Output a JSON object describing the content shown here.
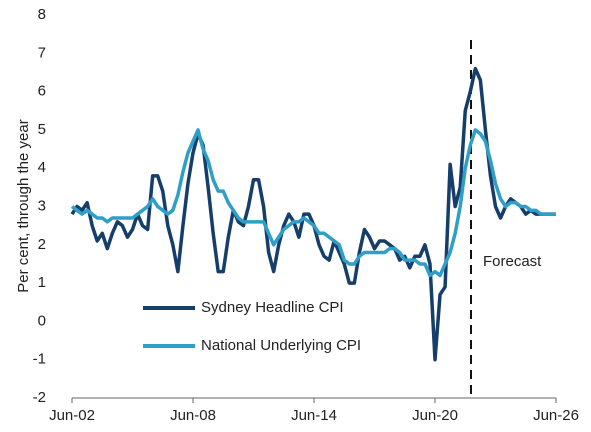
{
  "chart_data": {
    "type": "line",
    "y_label": "Per cent, through the year",
    "annotation": "Forecast",
    "categories": [
      "Jun-02",
      null,
      null,
      null,
      null,
      null,
      null,
      null,
      null,
      null,
      null,
      null,
      null,
      null,
      null,
      null,
      null,
      null,
      null,
      null,
      null,
      null,
      null,
      null,
      "Jun-08",
      null,
      null,
      null,
      null,
      null,
      null,
      null,
      null,
      null,
      null,
      null,
      null,
      null,
      null,
      null,
      null,
      null,
      null,
      null,
      null,
      null,
      null,
      null,
      "Jun-14",
      null,
      null,
      null,
      null,
      null,
      null,
      null,
      null,
      null,
      null,
      null,
      null,
      null,
      null,
      null,
      null,
      null,
      null,
      null,
      null,
      null,
      null,
      null,
      "Jun-20",
      null,
      null,
      null,
      null,
      null,
      null,
      null,
      null,
      null,
      null,
      null,
      null,
      null,
      null,
      null,
      null,
      null,
      null,
      null,
      null,
      null,
      null,
      null,
      "Jun-26"
    ],
    "series": [
      {
        "name": "Sydney Headline CPI",
        "color": "#153e6a",
        "values": [
          2.8,
          3.0,
          2.9,
          3.1,
          2.5,
          2.1,
          2.3,
          1.9,
          2.3,
          2.6,
          2.5,
          2.2,
          2.4,
          2.8,
          2.5,
          2.4,
          3.8,
          3.8,
          3.4,
          2.5,
          2.0,
          1.3,
          2.5,
          3.6,
          4.4,
          4.9,
          4.6,
          3.5,
          2.3,
          1.3,
          1.3,
          2.2,
          2.9,
          2.6,
          2.5,
          3.0,
          3.7,
          3.7,
          3.0,
          1.8,
          1.3,
          2.0,
          2.5,
          2.8,
          2.6,
          2.2,
          2.8,
          2.8,
          2.5,
          2.0,
          1.7,
          1.6,
          2.1,
          1.8,
          1.5,
          1.0,
          1.0,
          1.8,
          2.4,
          2.2,
          1.9,
          2.1,
          2.1,
          2.0,
          1.9,
          1.6,
          1.7,
          1.4,
          1.7,
          1.7,
          2.0,
          1.5,
          -1.0,
          0.7,
          0.9,
          4.1,
          3.0,
          3.5,
          5.5,
          6.0,
          6.6,
          6.3,
          5.0,
          3.8,
          3.0,
          2.7,
          3.0,
          3.2,
          3.1,
          3.0,
          2.8,
          2.9,
          2.8,
          2.8,
          2.8,
          2.8,
          2.8
        ]
      },
      {
        "name": "National Underlying CPI",
        "color": "#2f9fc8",
        "values": [
          3.0,
          2.9,
          2.8,
          2.9,
          2.8,
          2.7,
          2.7,
          2.6,
          2.7,
          2.7,
          2.7,
          2.7,
          2.7,
          2.8,
          2.9,
          3.0,
          3.2,
          3.0,
          2.9,
          2.8,
          2.9,
          3.3,
          3.9,
          4.4,
          4.7,
          5.0,
          4.5,
          4.2,
          3.7,
          3.4,
          3.4,
          3.1,
          2.9,
          2.7,
          2.6,
          2.6,
          2.6,
          2.6,
          2.6,
          2.3,
          2.0,
          2.2,
          2.4,
          2.5,
          2.6,
          2.6,
          2.7,
          2.6,
          2.5,
          2.3,
          2.3,
          2.2,
          2.1,
          2.0,
          1.6,
          1.5,
          1.5,
          1.7,
          1.8,
          1.8,
          1.8,
          1.8,
          1.8,
          1.9,
          1.9,
          1.8,
          1.6,
          1.6,
          1.6,
          1.5,
          1.5,
          1.2,
          1.3,
          1.2,
          1.5,
          1.8,
          2.3,
          3.0,
          4.0,
          4.6,
          5.0,
          4.9,
          4.7,
          4.2,
          3.6,
          3.2,
          3.0,
          3.1,
          3.1,
          3.0,
          3.0,
          2.9,
          2.9,
          2.8,
          2.8,
          2.8,
          2.8
        ]
      }
    ],
    "ylim": [
      -2,
      8
    ],
    "yticks": [
      -2,
      -1,
      0,
      1,
      2,
      3,
      4,
      5,
      6,
      7,
      8
    ],
    "grid": false,
    "legend": "lower left"
  }
}
